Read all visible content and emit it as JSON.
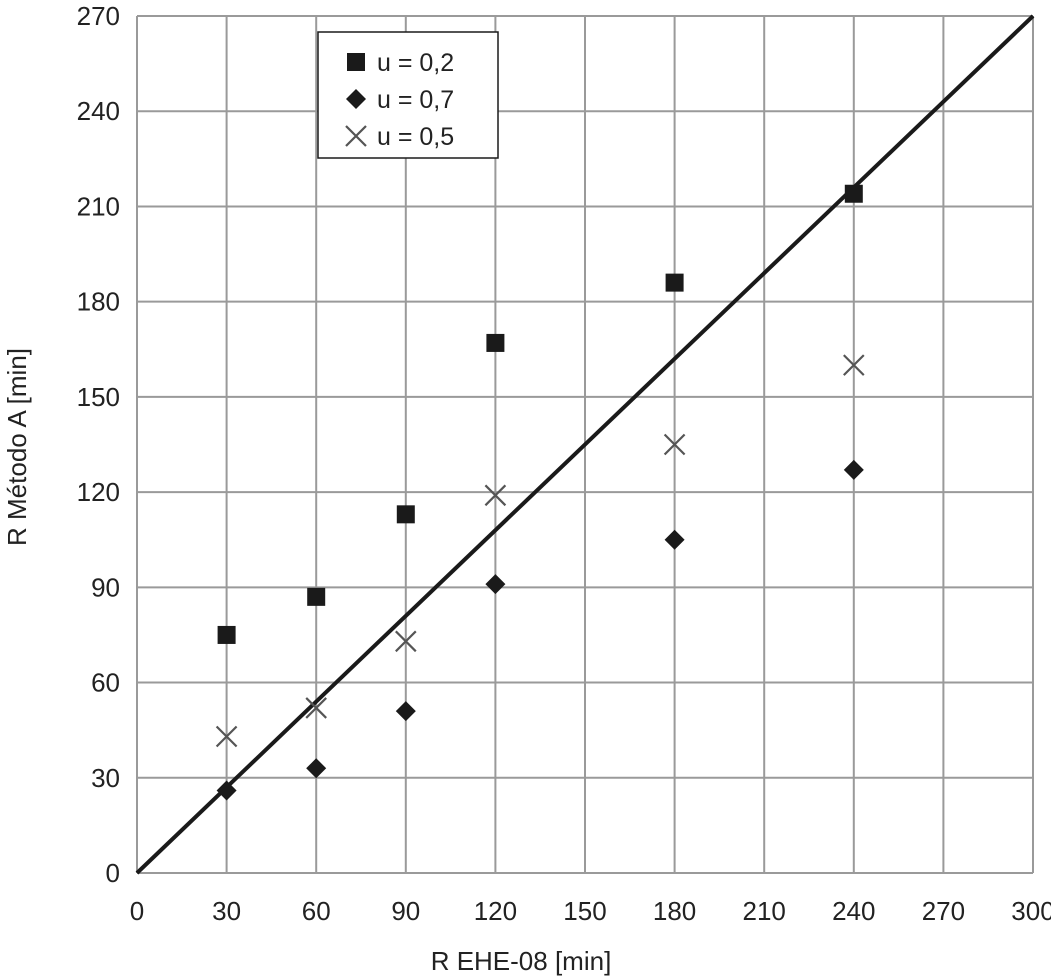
{
  "chart_data": {
    "type": "scatter",
    "title": "",
    "xlabel": "R EHE-08 [min]",
    "ylabel": "R Método A [min]",
    "xlim": [
      0,
      300
    ],
    "ylim": [
      0,
      270
    ],
    "xticks": [
      0,
      30,
      60,
      90,
      120,
      150,
      180,
      210,
      240,
      270,
      300
    ],
    "yticks": [
      0,
      30,
      60,
      90,
      120,
      150,
      180,
      210,
      240,
      270
    ],
    "grid": true,
    "legend_position": "top-left",
    "reference_line": {
      "x": [
        0,
        300
      ],
      "y": [
        0,
        270
      ]
    },
    "series": [
      {
        "name": "u = 0,2",
        "marker": "square",
        "color": "#1a1a1a",
        "points": [
          [
            30,
            75
          ],
          [
            60,
            87
          ],
          [
            90,
            113
          ],
          [
            120,
            167
          ],
          [
            180,
            186
          ],
          [
            240,
            214
          ]
        ]
      },
      {
        "name": "u = 0,7",
        "marker": "diamond",
        "color": "#1a1a1a",
        "points": [
          [
            30,
            26
          ],
          [
            60,
            33
          ],
          [
            90,
            51
          ],
          [
            120,
            91
          ],
          [
            180,
            105
          ],
          [
            240,
            127
          ]
        ]
      },
      {
        "name": "u = 0,5",
        "marker": "x",
        "color": "#555555",
        "points": [
          [
            30,
            43
          ],
          [
            60,
            52
          ],
          [
            90,
            73
          ],
          [
            120,
            119
          ],
          [
            180,
            135
          ],
          [
            240,
            160
          ]
        ]
      }
    ]
  }
}
